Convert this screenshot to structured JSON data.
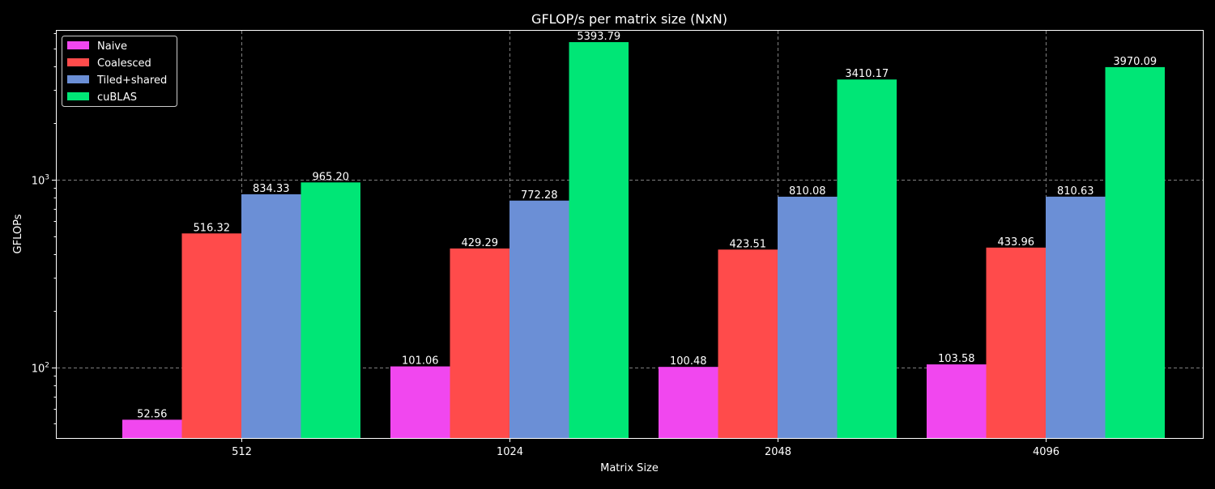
{
  "chart_data": {
    "type": "bar",
    "title": "GFLOP/s per matrix size (NxN)",
    "xlabel": "Matrix Size",
    "ylabel": "GFLOPs",
    "yscale": "log",
    "ylim": [
      42,
      6200
    ],
    "categories": [
      "512",
      "1024",
      "2048",
      "4096"
    ],
    "series": [
      {
        "name": "Naive",
        "color": "#f147ef",
        "values": [
          52.56,
          101.06,
          100.48,
          103.58
        ],
        "labels": [
          "52.56",
          "101.06",
          "100.48",
          "103.58"
        ]
      },
      {
        "name": "Coalesced",
        "color": "#ff4b4b",
        "values": [
          516.32,
          429.29,
          423.51,
          433.96
        ],
        "labels": [
          "516.32",
          "429.29",
          "423.51",
          "433.96"
        ]
      },
      {
        "name": "Tiled+shared",
        "color": "#6b8fd6",
        "values": [
          834.33,
          772.28,
          810.08,
          810.63
        ],
        "labels": [
          "834.33",
          "772.28",
          "810.08",
          "810.63"
        ]
      },
      {
        "name": "cuBLAS",
        "color": "#00e676",
        "values": [
          965.2,
          5393.79,
          3410.17,
          3970.09
        ],
        "labels": [
          "965.20",
          "5393.79",
          "3410.17",
          "3970.09"
        ]
      }
    ],
    "y_major_ticks": [
      100,
      1000
    ],
    "y_major_tick_labels": [
      {
        "base": "10",
        "exp": "2"
      },
      {
        "base": "10",
        "exp": "3"
      }
    ],
    "grid": true,
    "legend_position": "top-left",
    "colors": {
      "background": "#000000",
      "axes": "#ffffff",
      "grid": "#7f7f7f",
      "text": "#ffffff"
    }
  }
}
